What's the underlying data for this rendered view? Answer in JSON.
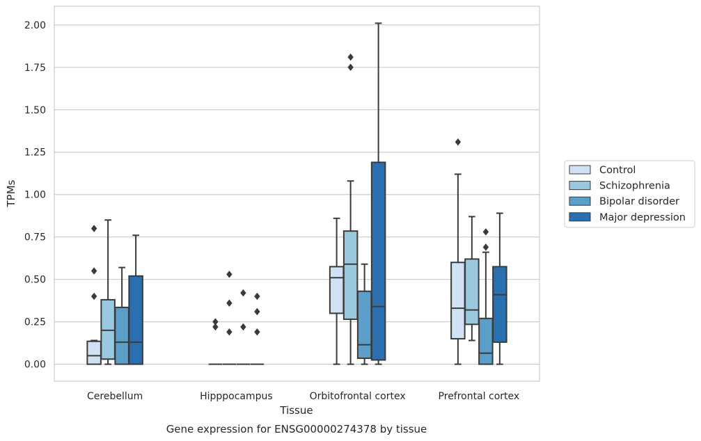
{
  "chart_data": {
    "type": "box",
    "title": "Gene expression for ENSG00000274378 by tissue",
    "xlabel": "Tissue",
    "ylabel": "TPMs",
    "ylim": [
      -0.1,
      2.11
    ],
    "yticks": [
      "0.00",
      "0.25",
      "0.50",
      "0.75",
      "1.00",
      "1.25",
      "1.50",
      "1.75",
      "2.00"
    ],
    "grid": "horizontal",
    "legend_position": "right",
    "categories": [
      "Cerebellum",
      "Hipppocampus",
      "Orbitofrontal cortex",
      "Prefrontal cortex"
    ],
    "series": [
      {
        "name": "Control",
        "color": "#cfe1f2",
        "boxes": [
          {
            "q1": 0.0,
            "median": 0.05,
            "q3": 0.135,
            "whisker_low": 0.0,
            "whisker_high": 0.14,
            "outliers": [
              0.4,
              0.55,
              0.8
            ]
          },
          {
            "q1": 0.0,
            "median": 0.0,
            "q3": 0.0,
            "whisker_low": 0.0,
            "whisker_high": 0.0,
            "outliers": [
              0.22,
              0.25
            ]
          },
          {
            "q1": 0.3,
            "median": 0.51,
            "q3": 0.575,
            "whisker_low": 0.0,
            "whisker_high": 0.86,
            "outliers": []
          },
          {
            "q1": 0.15,
            "median": 0.33,
            "q3": 0.6,
            "whisker_low": 0.0,
            "whisker_high": 1.12,
            "outliers": [
              1.31
            ]
          }
        ]
      },
      {
        "name": "Schizophrenia",
        "color": "#9ac8e0",
        "boxes": [
          {
            "q1": 0.03,
            "median": 0.2,
            "q3": 0.38,
            "whisker_low": 0.0,
            "whisker_high": 0.85,
            "outliers": []
          },
          {
            "q1": 0.0,
            "median": 0.0,
            "q3": 0.0,
            "whisker_low": 0.0,
            "whisker_high": 0.0,
            "outliers": [
              0.19,
              0.36,
              0.53
            ]
          },
          {
            "q1": 0.265,
            "median": 0.59,
            "q3": 0.785,
            "whisker_low": 0.0,
            "whisker_high": 1.08,
            "outliers": [
              1.75,
              1.81
            ]
          },
          {
            "q1": 0.235,
            "median": 0.32,
            "q3": 0.62,
            "whisker_low": 0.14,
            "whisker_high": 0.87,
            "outliers": []
          }
        ]
      },
      {
        "name": "Bipolar disorder",
        "color": "#5a9ec9",
        "boxes": [
          {
            "q1": 0.0,
            "median": 0.13,
            "q3": 0.335,
            "whisker_low": 0.0,
            "whisker_high": 0.57,
            "outliers": []
          },
          {
            "q1": 0.0,
            "median": 0.0,
            "q3": 0.0,
            "whisker_low": 0.0,
            "whisker_high": 0.0,
            "outliers": [
              0.22,
              0.42
            ]
          },
          {
            "q1": 0.035,
            "median": 0.115,
            "q3": 0.43,
            "whisker_low": 0.0,
            "whisker_high": 0.59,
            "outliers": []
          },
          {
            "q1": 0.0,
            "median": 0.065,
            "q3": 0.27,
            "whisker_low": 0.0,
            "whisker_high": 0.66,
            "outliers": [
              0.69,
              0.78
            ]
          }
        ]
      },
      {
        "name": "Major depression",
        "color": "#2a6fb0",
        "boxes": [
          {
            "q1": 0.0,
            "median": 0.13,
            "q3": 0.52,
            "whisker_low": 0.0,
            "whisker_high": 0.76,
            "outliers": []
          },
          {
            "q1": 0.0,
            "median": 0.0,
            "q3": 0.0,
            "whisker_low": 0.0,
            "whisker_high": 0.0,
            "outliers": [
              0.19,
              0.31,
              0.4
            ]
          },
          {
            "q1": 0.025,
            "median": 0.34,
            "q3": 1.19,
            "whisker_low": 0.0,
            "whisker_high": 2.01,
            "outliers": []
          },
          {
            "q1": 0.13,
            "median": 0.41,
            "q3": 0.575,
            "whisker_low": 0.0,
            "whisker_high": 0.89,
            "outliers": []
          }
        ]
      }
    ]
  }
}
